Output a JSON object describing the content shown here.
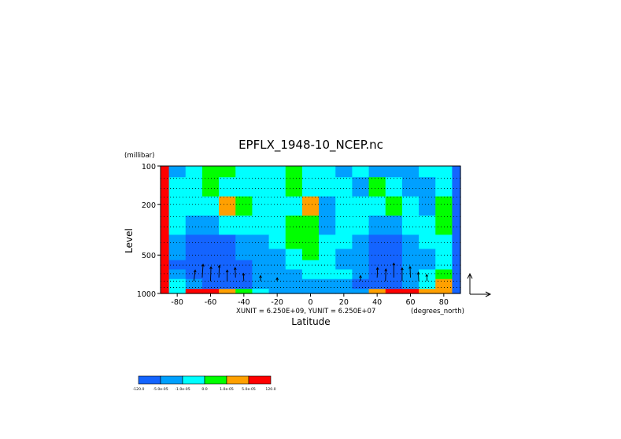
{
  "chart_data": {
    "type": "heatmap",
    "title": "EPFLX_1948-10_NCEP.nc",
    "xlabel": "Latitude",
    "ylabel": "Level",
    "y_units": "(millibar)",
    "x_units": "(degrees_north)",
    "y_scale": "log",
    "y_reversed": true,
    "xlim": [
      -90,
      90
    ],
    "ylim": [
      100,
      1000
    ],
    "x_ticks": [
      -80,
      -60,
      -40,
      -20,
      0,
      20,
      40,
      60,
      80
    ],
    "y_ticks": [
      100,
      200,
      500,
      1000
    ],
    "vector_scale_text": "XUNIT = 6.250E+09, YUNIT = 6.250E+07",
    "grid": "dotted horizontal lines at pressure levels",
    "colorbar": {
      "orientation": "horizontal",
      "placement": "bottom-left",
      "colors": [
        "#1464ff",
        "#00a0ff",
        "#00ffff",
        "#00ff00",
        "#ffa000",
        "#ff0000"
      ],
      "tick_labels": [
        "-120.0",
        "-5.0e-05",
        "-1.0e-05",
        "0.0",
        "1.0e-05",
        "5.0e-05",
        "120.0"
      ]
    },
    "pressure_grid_levels": [
      100,
      125,
      150,
      175,
      200,
      250,
      300,
      400,
      500,
      600,
      700,
      800,
      900,
      1000
    ],
    "field_lat": [
      -90,
      -80,
      -70,
      -60,
      -50,
      -40,
      -30,
      -20,
      -10,
      0,
      10,
      20,
      30,
      40,
      50,
      60,
      70,
      80,
      90
    ],
    "field_lev": [
      100,
      150,
      200,
      300,
      400,
      500,
      600,
      700,
      850,
      1000
    ],
    "field_class": [
      [
        5,
        1,
        2,
        3,
        3,
        2,
        2,
        2,
        3,
        2,
        2,
        1,
        2,
        1,
        1,
        1,
        2,
        2,
        0
      ],
      [
        5,
        2,
        2,
        3,
        2,
        2,
        2,
        2,
        3,
        2,
        2,
        2,
        1,
        3,
        2,
        1,
        1,
        2,
        0
      ],
      [
        5,
        2,
        2,
        2,
        4,
        3,
        2,
        2,
        2,
        4,
        1,
        2,
        2,
        2,
        3,
        2,
        1,
        3,
        0
      ],
      [
        5,
        2,
        1,
        1,
        2,
        2,
        2,
        2,
        3,
        3,
        1,
        2,
        2,
        1,
        1,
        2,
        2,
        3,
        0
      ],
      [
        5,
        1,
        0,
        0,
        0,
        1,
        1,
        2,
        3,
        3,
        2,
        2,
        1,
        0,
        0,
        1,
        2,
        2,
        0
      ],
      [
        5,
        1,
        0,
        0,
        0,
        1,
        1,
        1,
        2,
        3,
        2,
        1,
        1,
        0,
        0,
        1,
        1,
        2,
        0
      ],
      [
        5,
        0,
        0,
        0,
        0,
        0,
        1,
        1,
        2,
        2,
        2,
        1,
        1,
        0,
        0,
        1,
        1,
        2,
        0
      ],
      [
        5,
        1,
        0,
        0,
        0,
        0,
        1,
        1,
        1,
        2,
        2,
        2,
        1,
        0,
        0,
        1,
        2,
        3,
        0
      ],
      [
        5,
        2,
        1,
        0,
        0,
        0,
        1,
        1,
        1,
        1,
        1,
        1,
        0,
        0,
        0,
        1,
        2,
        4,
        0
      ],
      [
        5,
        2,
        5,
        5,
        4,
        3,
        2,
        1,
        1,
        1,
        1,
        1,
        1,
        4,
        5,
        5,
        4,
        4,
        0
      ]
    ],
    "vectors": [
      {
        "lat": -70,
        "lev": 800,
        "u": 0.3,
        "v": 1.0
      },
      {
        "lat": -65,
        "lev": 750,
        "u": 0.2,
        "v": 1.2
      },
      {
        "lat": -60,
        "lev": 800,
        "u": 0.1,
        "v": 1.3
      },
      {
        "lat": -55,
        "lev": 750,
        "u": 0.1,
        "v": 1.1
      },
      {
        "lat": -50,
        "lev": 800,
        "u": 0.0,
        "v": 1.0
      },
      {
        "lat": -45,
        "lev": 750,
        "u": -0.1,
        "v": 0.9
      },
      {
        "lat": -40,
        "lev": 800,
        "u": -0.1,
        "v": 0.7
      },
      {
        "lat": -30,
        "lev": 800,
        "u": 0.0,
        "v": 0.5
      },
      {
        "lat": -20,
        "lev": 800,
        "u": 0.0,
        "v": 0.3
      },
      {
        "lat": 30,
        "lev": 800,
        "u": 0.0,
        "v": 0.5
      },
      {
        "lat": 40,
        "lev": 750,
        "u": 0.1,
        "v": 0.9
      },
      {
        "lat": 45,
        "lev": 800,
        "u": 0.1,
        "v": 1.1
      },
      {
        "lat": 50,
        "lev": 750,
        "u": 0.0,
        "v": 1.3
      },
      {
        "lat": 55,
        "lev": 800,
        "u": 0.0,
        "v": 1.2
      },
      {
        "lat": 60,
        "lev": 750,
        "u": -0.1,
        "v": 1.0
      },
      {
        "lat": 65,
        "lev": 800,
        "u": -0.1,
        "v": 0.8
      },
      {
        "lat": 70,
        "lev": 800,
        "u": -0.1,
        "v": 0.6
      }
    ]
  }
}
